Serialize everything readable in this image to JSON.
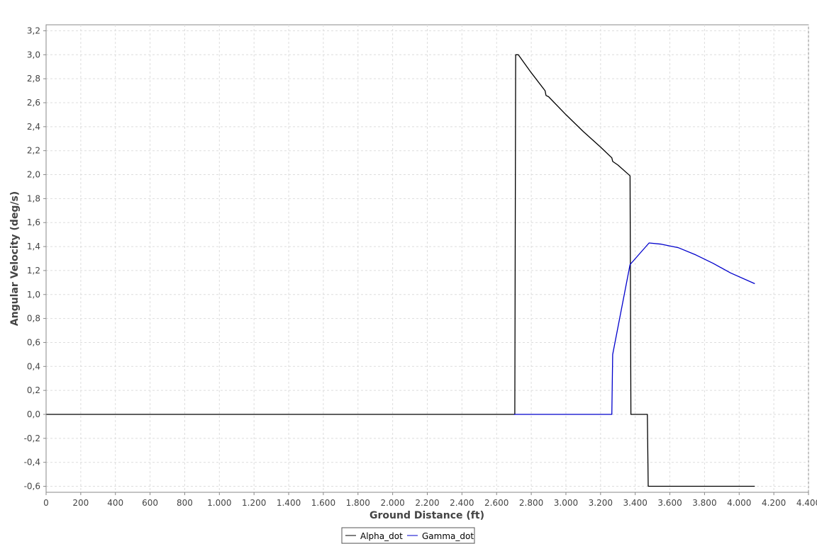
{
  "chart_data": {
    "type": "line",
    "xlabel": "Ground Distance (ft)",
    "ylabel": "Angular Velocity (deg/s)",
    "xlim": [
      0,
      4400
    ],
    "ylim": [
      -0.65,
      3.25
    ],
    "x_ticks": [
      0,
      200,
      400,
      600,
      800,
      1000,
      1200,
      1400,
      1600,
      1800,
      2000,
      2200,
      2400,
      2600,
      2800,
      3000,
      3200,
      3400,
      3600,
      3800,
      4000,
      4200,
      4400
    ],
    "x_tick_labels": [
      "0",
      "200",
      "400",
      "600",
      "800",
      "1.000",
      "1.200",
      "1.400",
      "1.600",
      "1.800",
      "2.000",
      "2.200",
      "2.400",
      "2.600",
      "2.800",
      "3.000",
      "3.200",
      "3.400",
      "3.600",
      "3.800",
      "4.000",
      "4.200",
      "4.400"
    ],
    "y_ticks": [
      -0.6,
      -0.4,
      -0.2,
      0.0,
      0.2,
      0.4,
      0.6,
      0.8,
      1.0,
      1.2,
      1.4,
      1.6,
      1.8,
      2.0,
      2.2,
      2.4,
      2.6,
      2.8,
      3.0,
      3.2
    ],
    "y_tick_labels": [
      "-0,6",
      "-0,4",
      "-0,2",
      "0,0",
      "0,2",
      "0,4",
      "0,6",
      "0,8",
      "1,0",
      "1,2",
      "1,4",
      "1,6",
      "1,8",
      "2,0",
      "2,2",
      "2,4",
      "2,6",
      "2,8",
      "3,0",
      "3,2"
    ],
    "grid": true,
    "legend_position": "bottom-center",
    "series": [
      {
        "name": "Alpha_dot",
        "color": "#000000",
        "points": [
          [
            0,
            0.0
          ],
          [
            2705,
            0.0
          ],
          [
            2710,
            3.0
          ],
          [
            2725,
            3.0
          ],
          [
            2800,
            2.85
          ],
          [
            2880,
            2.7
          ],
          [
            2885,
            2.66
          ],
          [
            2900,
            2.65
          ],
          [
            3000,
            2.5
          ],
          [
            3100,
            2.36
          ],
          [
            3200,
            2.23
          ],
          [
            3265,
            2.14
          ],
          [
            3270,
            2.11
          ],
          [
            3300,
            2.08
          ],
          [
            3370,
            1.99
          ],
          [
            3375,
            0.0
          ],
          [
            3470,
            0.0
          ],
          [
            3475,
            -0.6
          ],
          [
            4090,
            -0.6
          ]
        ]
      },
      {
        "name": "Gamma_dot",
        "color": "#0000cc",
        "points": [
          [
            2700,
            0.0
          ],
          [
            3265,
            0.0
          ],
          [
            3270,
            0.5
          ],
          [
            3370,
            1.25
          ],
          [
            3480,
            1.43
          ],
          [
            3550,
            1.42
          ],
          [
            3650,
            1.39
          ],
          [
            3750,
            1.33
          ],
          [
            3850,
            1.26
          ],
          [
            3950,
            1.18
          ],
          [
            4090,
            1.09
          ]
        ]
      }
    ]
  }
}
